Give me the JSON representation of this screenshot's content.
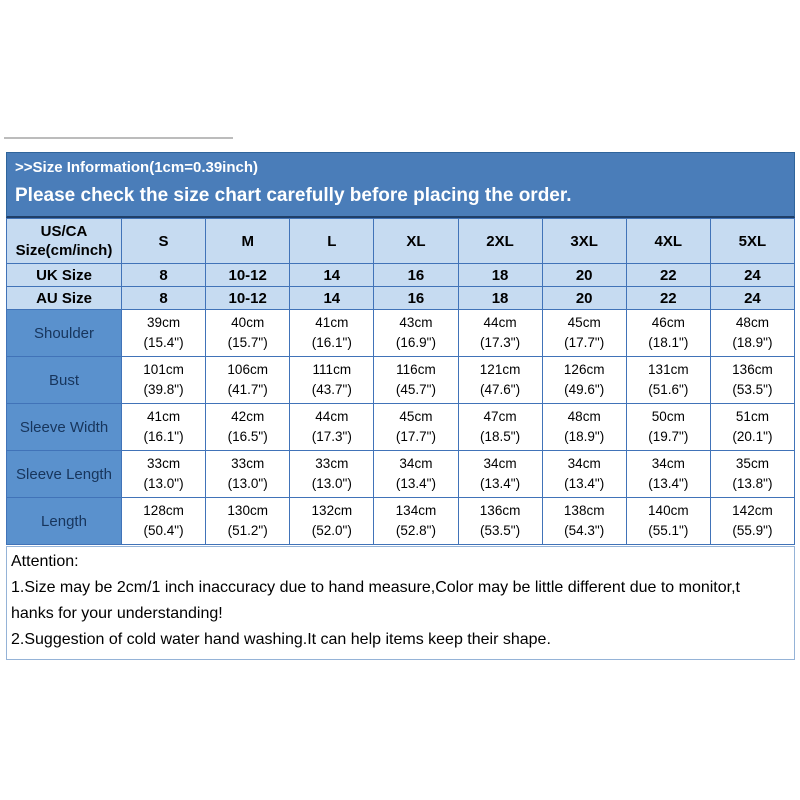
{
  "banner": {
    "line1": ">>Size Information(1cm=0.39inch)",
    "line2": "Please check the size chart carefully before placing the order."
  },
  "table": {
    "corner_header": "US/CA Size(cm/inch)",
    "size_columns": [
      "S",
      "M",
      "L",
      "XL",
      "2XL",
      "3XL",
      "4XL",
      "5XL"
    ],
    "size_rows": [
      {
        "label": "UK Size",
        "values": [
          "8",
          "10-12",
          "14",
          "16",
          "18",
          "20",
          "22",
          "24"
        ]
      },
      {
        "label": "AU Size",
        "values": [
          "8",
          "10-12",
          "14",
          "16",
          "18",
          "20",
          "22",
          "24"
        ]
      }
    ],
    "measurement_rows": [
      {
        "label": "Shoulder",
        "cm": [
          "39cm",
          "40cm",
          "41cm",
          "43cm",
          "44cm",
          "45cm",
          "46cm",
          "48cm"
        ],
        "inch": [
          "(15.4\")",
          "(15.7\")",
          "(16.1\")",
          "(16.9\")",
          "(17.3\")",
          "(17.7\")",
          "(18.1\")",
          "(18.9\")"
        ]
      },
      {
        "label": "Bust",
        "cm": [
          "101cm",
          "106cm",
          "111cm",
          "116cm",
          "121cm",
          "126cm",
          "131cm",
          "136cm"
        ],
        "inch": [
          "(39.8\")",
          "(41.7\")",
          "(43.7\")",
          "(45.7\")",
          "(47.6\")",
          "(49.6\")",
          "(51.6\")",
          "(53.5\")"
        ]
      },
      {
        "label": "Sleeve Width",
        "cm": [
          "41cm",
          "42cm",
          "44cm",
          "45cm",
          "47cm",
          "48cm",
          "50cm",
          "51cm"
        ],
        "inch": [
          "(16.1\")",
          "(16.5\")",
          "(17.3\")",
          "(17.7\")",
          "(18.5\")",
          "(18.9\")",
          "(19.7\")",
          "(20.1\")"
        ]
      },
      {
        "label": "Sleeve Length",
        "cm": [
          "33cm",
          "33cm",
          "33cm",
          "34cm",
          "34cm",
          "34cm",
          "34cm",
          "35cm"
        ],
        "inch": [
          "(13.0\")",
          "(13.0\")",
          "(13.0\")",
          "(13.4\")",
          "(13.4\")",
          "(13.4\")",
          "(13.4\")",
          "(13.8\")"
        ]
      },
      {
        "label": "Length",
        "cm": [
          "128cm",
          "130cm",
          "132cm",
          "134cm",
          "136cm",
          "138cm",
          "140cm",
          "142cm"
        ],
        "inch": [
          "(50.4\")",
          "(51.2\")",
          "(52.0\")",
          "(52.8\")",
          "(53.5\")",
          "(54.3\")",
          "(55.1\")",
          "(55.9\")"
        ]
      }
    ]
  },
  "attention": {
    "title": "Attention:",
    "lines": [
      "1.Size may be 2cm/1 inch inaccuracy due to hand measure,Color may be little different due to monitor,t",
      "hanks for your understanding!",
      "2.Suggestion of cold water hand washing.It can help items keep their shape."
    ]
  },
  "colors": {
    "banner_blue": "#4a7db9",
    "label_cell_blue": "#5a91cd",
    "light_blue_cell": "#c6dbf1",
    "grid_border": "#4173b8",
    "attention_border": "#95b3d7",
    "banner_text": "#ffffff",
    "table_text": "#000000",
    "label_text": "#17355c"
  }
}
